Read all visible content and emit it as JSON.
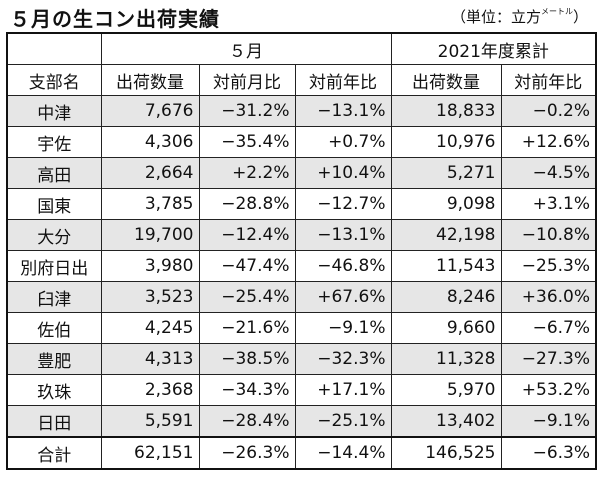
{
  "title": "５月の生コン出荷実績",
  "unit": {
    "prefix": "（単位：立方",
    "small": "メートル",
    "suffix": "）"
  },
  "group_headers": {
    "month": "５月",
    "ytd": "2021年度累計"
  },
  "columns": [
    "支部名",
    "出荷数量",
    "対前月比",
    "対前年比",
    "出荷数量",
    "対前年比"
  ],
  "rows": [
    [
      "中津",
      "7,676",
      "−31.2%",
      "−13.1%",
      "18,833",
      "−0.2%"
    ],
    [
      "宇佐",
      "4,306",
      "−35.4%",
      "+0.7%",
      "10,976",
      "+12.6%"
    ],
    [
      "高田",
      "2,664",
      "+2.2%",
      "+10.4%",
      "5,271",
      "−4.5%"
    ],
    [
      "国東",
      "3,785",
      "−28.8%",
      "−12.7%",
      "9,098",
      "+3.1%"
    ],
    [
      "大分",
      "19,700",
      "−12.4%",
      "−13.1%",
      "42,198",
      "−10.8%"
    ],
    [
      "別府日出",
      "3,980",
      "−47.4%",
      "−46.8%",
      "11,543",
      "−25.3%"
    ],
    [
      "臼津",
      "3,523",
      "−25.4%",
      "+67.6%",
      "8,246",
      "+36.0%"
    ],
    [
      "佐伯",
      "4,245",
      "−21.6%",
      "−9.1%",
      "9,660",
      "−6.7%"
    ],
    [
      "豊肥",
      "4,313",
      "−38.5%",
      "−32.3%",
      "11,328",
      "−27.3%"
    ],
    [
      "玖珠",
      "2,368",
      "−34.3%",
      "+17.1%",
      "5,970",
      "+53.2%"
    ],
    [
      "日田",
      "5,591",
      "−28.4%",
      "−25.1%",
      "13,402",
      "−9.1%"
    ]
  ],
  "total": [
    "合計",
    "62,151",
    "−26.3%",
    "−14.4%",
    "146,525",
    "−6.3%"
  ],
  "colors": {
    "shade": "#e6e6e6",
    "border": "#222222"
  }
}
